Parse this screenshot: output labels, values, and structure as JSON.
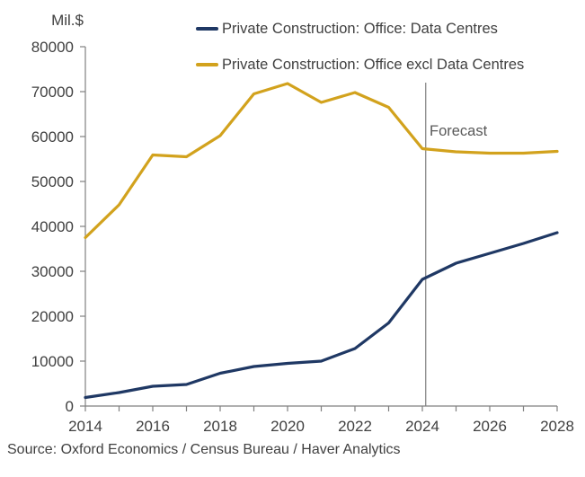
{
  "y_axis_unit": "Mil.$",
  "legend": [
    {
      "label": "Private Construction: Office: Data Centres",
      "color": "#1F3864"
    },
    {
      "label": "Private Construction: Office excl Data Centres",
      "color": "#D2A21D"
    }
  ],
  "annotations": {
    "forecast_label": "Forecast"
  },
  "footer": {
    "source": "Source: Oxford Economics / Census Bureau / Haver Analytics"
  },
  "chart_data": {
    "type": "line",
    "title": "",
    "xlabel": "",
    "ylabel": "Mil.$",
    "x": [
      2014,
      2015,
      2016,
      2017,
      2018,
      2019,
      2020,
      2021,
      2022,
      2023,
      2024,
      2025,
      2026,
      2027,
      2028
    ],
    "series": [
      {
        "name": "Private Construction: Office: Data Centres",
        "color": "#1F3864",
        "values": [
          1900,
          3000,
          4400,
          4800,
          7300,
          8800,
          9500,
          10000,
          12800,
          18500,
          28200,
          31800,
          34000,
          36200,
          38600
        ]
      },
      {
        "name": "Private Construction: Office excl Data Centres",
        "color": "#D2A21D",
        "values": [
          37500,
          44800,
          55900,
          55500,
          60200,
          69500,
          71800,
          67600,
          69800,
          66500,
          57300,
          56600,
          56300,
          56300,
          56700
        ]
      }
    ],
    "xlim": [
      2014,
      2028
    ],
    "ylim": [
      0,
      80000
    ],
    "y_axis_ticks": [
      0,
      10000,
      20000,
      30000,
      40000,
      50000,
      60000,
      70000,
      80000
    ],
    "x_axis_tick_years": [
      2014,
      2015,
      2016,
      2017,
      2018,
      2019,
      2020,
      2021,
      2022,
      2023,
      2024,
      2025,
      2026,
      2027,
      2028
    ],
    "x_axis_label_years": [
      2014,
      2016,
      2018,
      2020,
      2022,
      2024,
      2026,
      2028
    ],
    "forecast_line_x": 2024.1,
    "forecast_line_top_value": 72000,
    "grid": false,
    "legend_position": "top",
    "axis_color": "#808080",
    "text_color": "#404040"
  }
}
